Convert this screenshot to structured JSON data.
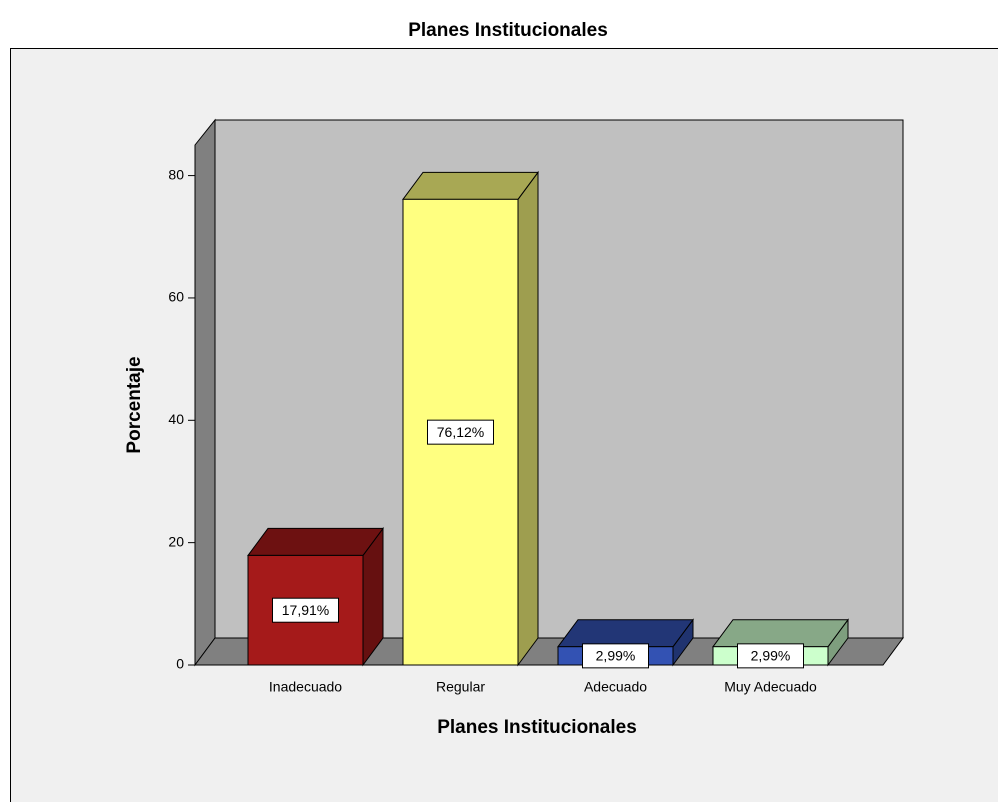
{
  "chart_data": {
    "type": "bar",
    "title": "Planes Institucionales",
    "x_label": "Planes Institucionales",
    "y_label": "Porcentaje",
    "categories": [
      "Inadecuado",
      "Regular",
      "Adecuado",
      "Muy Adecuado"
    ],
    "values": [
      17.91,
      76.12,
      2.99,
      2.99
    ],
    "value_labels": [
      "17,91%",
      "76,12%",
      "2,99%",
      "2,99%"
    ],
    "colors": [
      "#a51a1a",
      "#ffff80",
      "#3352b3",
      "#ccffcc"
    ],
    "ylim": [
      0,
      85
    ],
    "yticks": [
      0,
      20,
      40,
      60,
      80
    ],
    "grid": false
  }
}
